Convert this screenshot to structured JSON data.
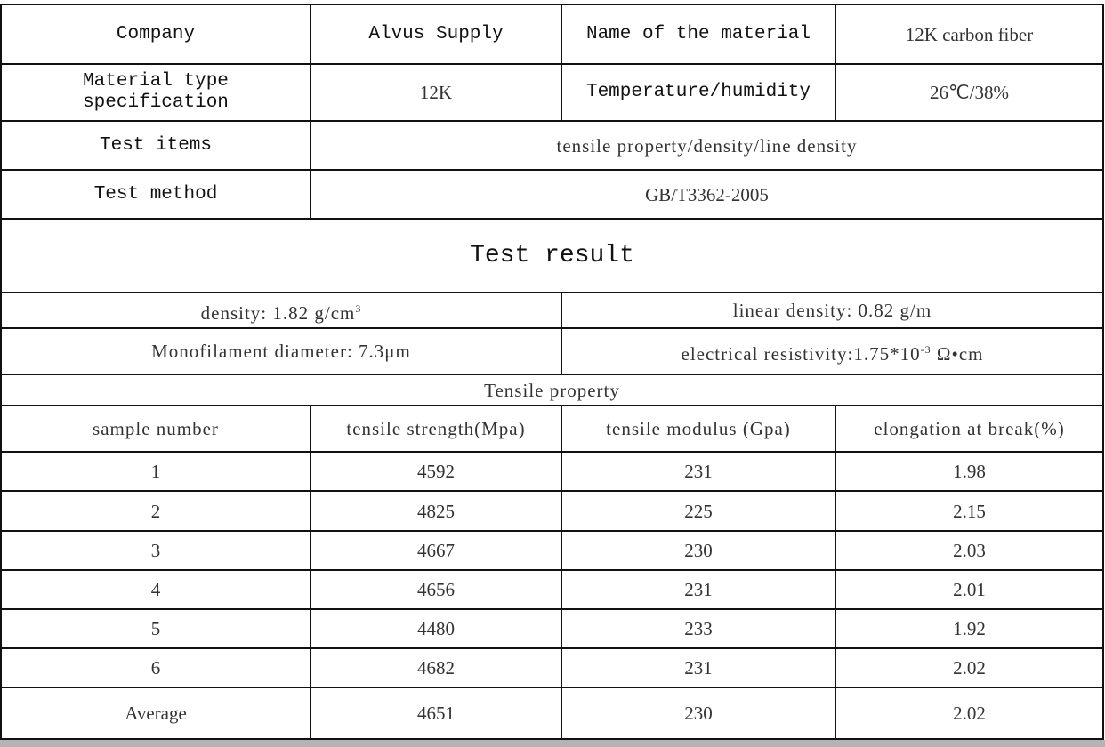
{
  "header": {
    "company_label": "Company",
    "company_value": "Alvus Supply",
    "material_name_label": "Name of the material",
    "material_name_value": "12K carbon fiber",
    "type_label": "Material type specification",
    "type_value": "12K",
    "temp_label": "Temperature/humidity",
    "temp_value": "26℃/38%",
    "test_items_label": "Test items",
    "test_items_value": "tensile property/density/line density",
    "test_method_label": "Test method",
    "test_method_value": "GB/T3362-2005"
  },
  "results": {
    "title": "Test result",
    "density_text": "density: 1.82 g/cm",
    "density_sup": "3",
    "linear_density": "linear density: 0.82 g/m",
    "diameter": "Monofilament diameter:  7.3μm",
    "resistivity_text": "electrical resistivity:1.75*10",
    "resistivity_sup": "-3",
    "resistivity_unit": " Ω•cm"
  },
  "tensile": {
    "title": "Tensile property",
    "columns": [
      "sample number",
      "tensile strength(Mpa)",
      "tensile modulus (Gpa)",
      "elongation at break(%)"
    ],
    "rows": [
      [
        "1",
        "4592",
        "231",
        "1.98"
      ],
      [
        "2",
        "4825",
        "225",
        "2.15"
      ],
      [
        "3",
        "4667",
        "230",
        "2.03"
      ],
      [
        "4",
        "4656",
        "231",
        "2.01"
      ],
      [
        "5",
        "4480",
        "233",
        "1.92"
      ],
      [
        "6",
        "4682",
        "231",
        "2.02"
      ],
      [
        "Average",
        "4651",
        "230",
        "2.02"
      ]
    ]
  }
}
